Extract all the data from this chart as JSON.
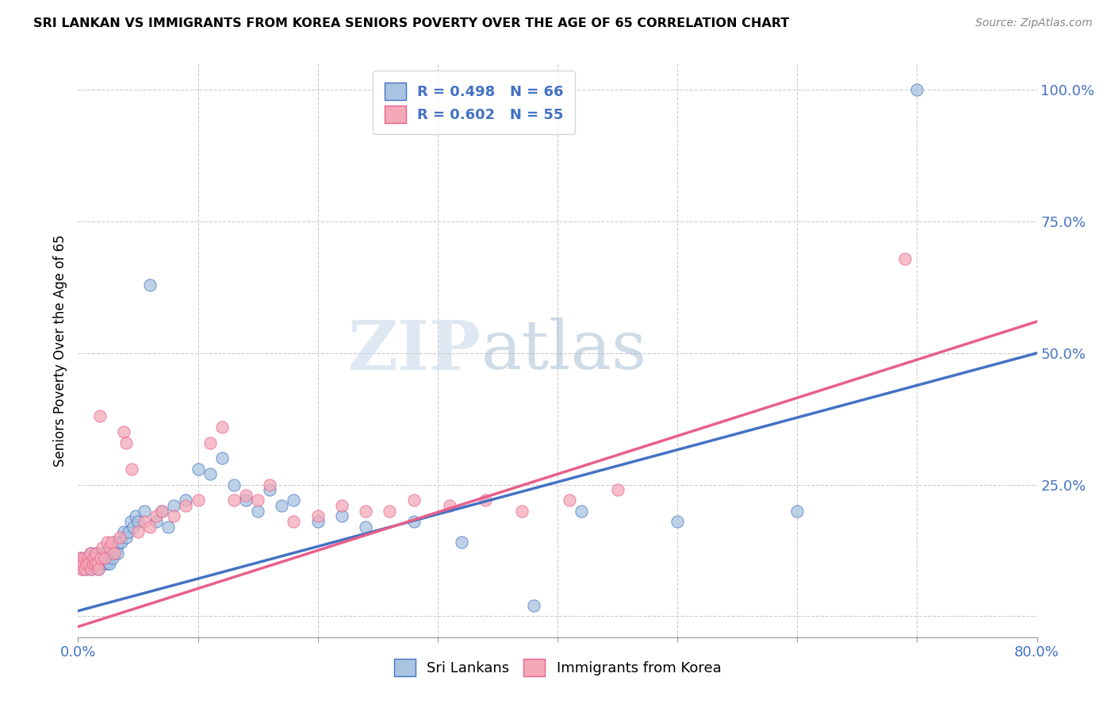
{
  "title": "SRI LANKAN VS IMMIGRANTS FROM KOREA SENIORS POVERTY OVER THE AGE OF 65 CORRELATION CHART",
  "source": "Source: ZipAtlas.com",
  "ylabel": "Seniors Poverty Over the Age of 65",
  "xlim": [
    0.0,
    0.8
  ],
  "ylim": [
    -0.04,
    1.05
  ],
  "yticks_right": [
    0.0,
    0.25,
    0.5,
    0.75,
    1.0
  ],
  "yticklabels_right": [
    "",
    "25.0%",
    "50.0%",
    "75.0%",
    "100.0%"
  ],
  "sri_lanka_R": 0.498,
  "sri_lanka_N": 66,
  "korea_R": 0.602,
  "korea_N": 55,
  "sri_lanka_color": "#a8c4e0",
  "korea_color": "#f4a9b8",
  "sri_lanka_line_color": "#4472c4",
  "korea_line_color": "#e8608a",
  "grid_color": "#cccccc",
  "sri_lanka_line_x": [
    0.0,
    0.8
  ],
  "sri_lanka_line_y": [
    0.01,
    0.5
  ],
  "korea_line_x": [
    0.0,
    0.8
  ],
  "korea_line_y": [
    -0.02,
    0.56
  ],
  "sl_x": [
    0.001,
    0.002,
    0.003,
    0.004,
    0.005,
    0.006,
    0.007,
    0.008,
    0.009,
    0.01,
    0.011,
    0.012,
    0.013,
    0.014,
    0.015,
    0.016,
    0.017,
    0.018,
    0.019,
    0.02,
    0.021,
    0.022,
    0.023,
    0.024,
    0.025,
    0.026,
    0.028,
    0.029,
    0.03,
    0.032,
    0.033,
    0.034,
    0.036,
    0.038,
    0.04,
    0.042,
    0.044,
    0.046,
    0.048,
    0.05,
    0.055,
    0.06,
    0.065,
    0.07,
    0.075,
    0.08,
    0.09,
    0.1,
    0.11,
    0.12,
    0.13,
    0.14,
    0.15,
    0.16,
    0.17,
    0.18,
    0.2,
    0.22,
    0.24,
    0.28,
    0.32,
    0.38,
    0.42,
    0.5,
    0.6,
    0.7
  ],
  "sl_y": [
    0.1,
    0.11,
    0.1,
    0.09,
    0.1,
    0.11,
    0.09,
    0.1,
    0.11,
    0.12,
    0.09,
    0.1,
    0.11,
    0.1,
    0.12,
    0.1,
    0.09,
    0.11,
    0.1,
    0.12,
    0.11,
    0.1,
    0.12,
    0.1,
    0.11,
    0.1,
    0.12,
    0.11,
    0.14,
    0.13,
    0.12,
    0.14,
    0.14,
    0.16,
    0.15,
    0.16,
    0.18,
    0.17,
    0.19,
    0.18,
    0.2,
    0.63,
    0.18,
    0.2,
    0.17,
    0.21,
    0.22,
    0.28,
    0.27,
    0.3,
    0.25,
    0.22,
    0.2,
    0.24,
    0.21,
    0.22,
    0.18,
    0.19,
    0.17,
    0.18,
    0.14,
    0.02,
    0.2,
    0.18,
    0.2,
    1.0
  ],
  "kr_x": [
    0.001,
    0.002,
    0.003,
    0.004,
    0.005,
    0.006,
    0.007,
    0.008,
    0.009,
    0.01,
    0.011,
    0.012,
    0.013,
    0.014,
    0.015,
    0.016,
    0.017,
    0.018,
    0.019,
    0.02,
    0.022,
    0.024,
    0.026,
    0.028,
    0.03,
    0.035,
    0.038,
    0.04,
    0.045,
    0.05,
    0.055,
    0.06,
    0.065,
    0.07,
    0.08,
    0.09,
    0.1,
    0.11,
    0.12,
    0.13,
    0.14,
    0.15,
    0.16,
    0.18,
    0.2,
    0.22,
    0.24,
    0.26,
    0.28,
    0.31,
    0.34,
    0.37,
    0.41,
    0.45,
    0.69
  ],
  "kr_y": [
    0.1,
    0.11,
    0.09,
    0.1,
    0.11,
    0.09,
    0.1,
    0.11,
    0.1,
    0.12,
    0.09,
    0.1,
    0.11,
    0.1,
    0.12,
    0.1,
    0.09,
    0.38,
    0.11,
    0.13,
    0.11,
    0.14,
    0.13,
    0.14,
    0.12,
    0.15,
    0.35,
    0.33,
    0.28,
    0.16,
    0.18,
    0.17,
    0.19,
    0.2,
    0.19,
    0.21,
    0.22,
    0.33,
    0.36,
    0.22,
    0.23,
    0.22,
    0.25,
    0.18,
    0.19,
    0.21,
    0.2,
    0.2,
    0.22,
    0.21,
    0.22,
    0.2,
    0.22,
    0.24,
    0.68
  ]
}
